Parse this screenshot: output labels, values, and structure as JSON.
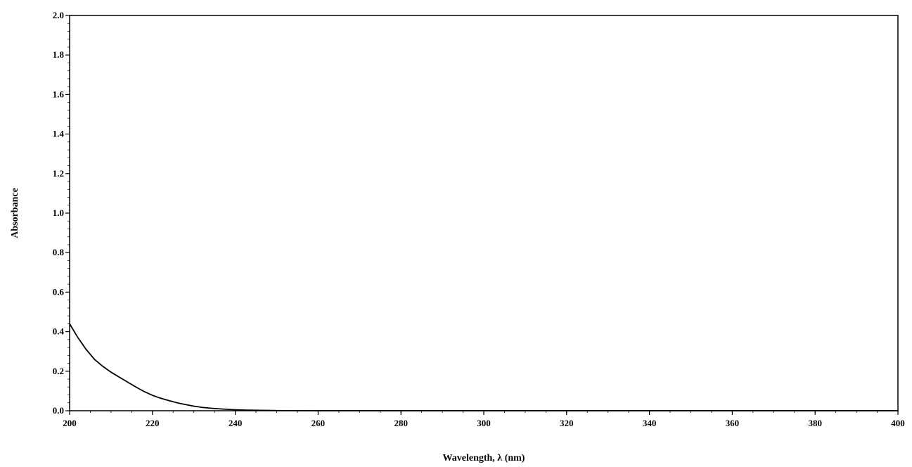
{
  "chart_data": {
    "type": "line",
    "title": "",
    "xlabel": "Wavelength, λ (nm)",
    "ylabel": "Absorbance",
    "xlim": [
      200,
      400
    ],
    "ylim": [
      0.0,
      2.0
    ],
    "x_ticks": [
      200,
      220,
      240,
      260,
      280,
      300,
      320,
      340,
      360,
      380,
      400
    ],
    "y_ticks": [
      "0.0",
      "0.2",
      "0.4",
      "0.6",
      "0.8",
      "1.0",
      "1.2",
      "1.4",
      "1.6",
      "1.8",
      "2.0"
    ],
    "grid": false,
    "legend": "none",
    "line_color": "#000000",
    "series": [
      {
        "x": [
          200,
          202,
          204,
          206,
          208,
          210,
          212,
          214,
          216,
          218,
          220,
          222,
          224,
          226,
          228,
          230,
          232,
          235,
          238,
          240,
          243,
          246,
          250,
          260,
          280,
          300,
          320,
          340,
          360,
          380,
          400
        ],
        "y": [
          0.44,
          0.37,
          0.31,
          0.26,
          0.225,
          0.195,
          0.17,
          0.145,
          0.12,
          0.097,
          0.078,
          0.063,
          0.051,
          0.04,
          0.031,
          0.023,
          0.017,
          0.011,
          0.007,
          0.005,
          0.003,
          0.002,
          0.001,
          0.0,
          0.0,
          0.0,
          0.0,
          0.0,
          0.0,
          0.0,
          0.0
        ]
      }
    ]
  }
}
